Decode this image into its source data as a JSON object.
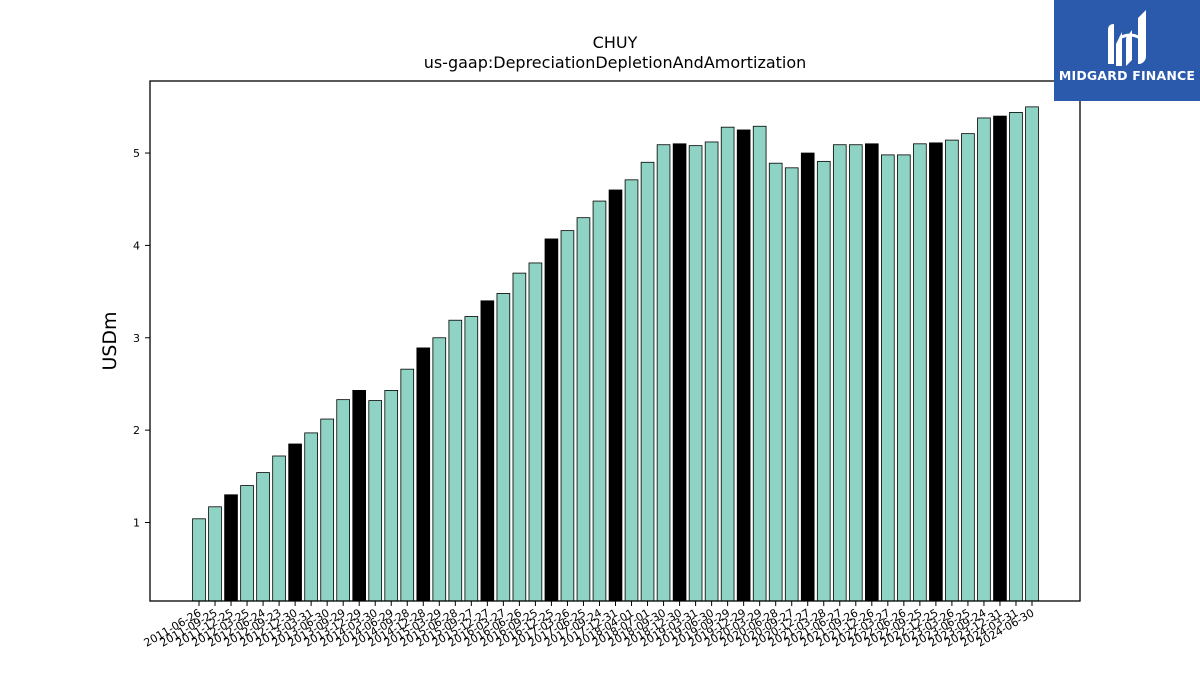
{
  "brand": {
    "name": "MIDGARD FINANCE",
    "bg_color": "#2b5aad"
  },
  "chart_data": {
    "type": "bar",
    "title": "CHUY",
    "subtitle": "us-gaap:DepreciationDepletionAndAmortization",
    "xlabel": "",
    "ylabel": "USDm",
    "ylim": [
      0.15,
      5.78
    ],
    "yticks": [
      1,
      2,
      3,
      4,
      5
    ],
    "colors": {
      "default": "#8fd3c4",
      "highlight": "#000000",
      "edge": "#000000"
    },
    "categories": [
      "2011-06-26",
      "2011-09-25",
      "2011-12-25",
      "2012-03-25",
      "2012-06-24",
      "2012-09-23",
      "2012-12-30",
      "2013-03-31",
      "2013-06-30",
      "2013-09-29",
      "2013-12-29",
      "2014-03-30",
      "2014-06-29",
      "2014-09-28",
      "2014-12-28",
      "2015-03-29",
      "2015-06-28",
      "2015-09-27",
      "2015-12-27",
      "2016-03-27",
      "2016-06-26",
      "2016-09-25",
      "2016-12-25",
      "2017-03-26",
      "2017-06-25",
      "2017-09-24",
      "2017-12-31",
      "2018-04-01",
      "2018-07-01",
      "2018-09-30",
      "2018-12-30",
      "2019-03-31",
      "2019-06-30",
      "2019-09-29",
      "2019-12-29",
      "2020-03-29",
      "2020-06-28",
      "2020-09-27",
      "2020-12-27",
      "2021-03-28",
      "2021-06-27",
      "2021-09-26",
      "2021-12-26",
      "2022-03-27",
      "2022-06-26",
      "2022-09-25",
      "2022-12-25",
      "2023-03-26",
      "2023-06-25",
      "2023-09-24",
      "2023-12-31",
      "2024-03-31",
      "2024-06-30"
    ],
    "values": [
      1.04,
      1.17,
      1.3,
      1.4,
      1.54,
      1.72,
      1.85,
      1.97,
      2.12,
      2.33,
      2.43,
      2.32,
      2.43,
      2.66,
      2.89,
      3.0,
      3.19,
      3.23,
      3.4,
      3.48,
      3.7,
      3.81,
      4.07,
      4.16,
      4.3,
      4.48,
      4.6,
      4.71,
      4.9,
      5.09,
      5.1,
      5.08,
      5.12,
      5.28,
      5.25,
      5.29,
      4.89,
      4.84,
      5.0,
      4.91,
      5.09,
      5.09,
      5.1,
      4.98,
      4.98,
      5.1,
      5.11,
      5.14,
      5.21,
      5.38,
      5.4,
      5.44,
      5.5
    ],
    "highlight": [
      false,
      false,
      true,
      false,
      false,
      false,
      true,
      false,
      false,
      false,
      true,
      false,
      false,
      false,
      true,
      false,
      false,
      false,
      true,
      false,
      false,
      false,
      true,
      false,
      false,
      false,
      true,
      false,
      false,
      false,
      true,
      false,
      false,
      false,
      true,
      false,
      false,
      false,
      true,
      false,
      false,
      false,
      true,
      false,
      false,
      false,
      true,
      false,
      false,
      false,
      true,
      false,
      false
    ]
  }
}
